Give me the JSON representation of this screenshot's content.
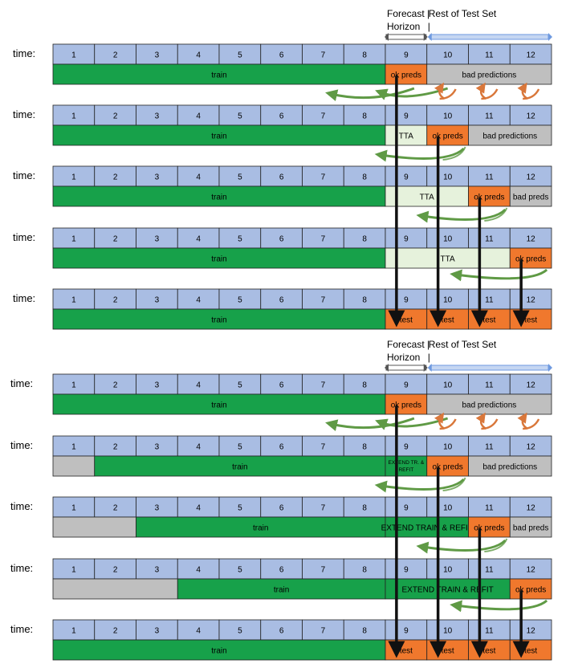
{
  "time_label": "time:",
  "step_numbers": [
    "1",
    "2",
    "3",
    "4",
    "5",
    "6",
    "7",
    "8",
    "9",
    "10",
    "11",
    "12"
  ],
  "colors": {
    "step_cell": "#a9bde3",
    "train": "#17a14a",
    "tta": "#e6f2dc",
    "ok": "#f0782d",
    "bad": "#bfbfbf",
    "forecast_arrow": "#555555",
    "test_arrow": "#6f9ae0",
    "curve_green": "#5f9a45",
    "curve_orange": "#d9773a",
    "vertical_arrow": "#111111"
  },
  "sections": [
    {
      "header": {
        "left_line1": "Forecast |",
        "left_line2": "Horizon",
        "right_line1": "Rest of Test Set",
        "right_line2": "|"
      },
      "rows": [
        {
          "segments": [
            {
              "from": 1,
              "to": 8,
              "kind": "train",
              "label": "train"
            },
            {
              "from": 9,
              "to": 9,
              "kind": "ok",
              "label": "ok preds"
            },
            {
              "from": 10,
              "to": 12,
              "kind": "bad",
              "label": "bad predictions"
            }
          ],
          "curves_after": "first"
        },
        {
          "segments": [
            {
              "from": 1,
              "to": 8,
              "kind": "train",
              "label": "train"
            },
            {
              "from": 9,
              "to": 9,
              "kind": "tta",
              "label": "TTA"
            },
            {
              "from": 10,
              "to": 10,
              "kind": "ok",
              "label": "ok preds"
            },
            {
              "from": 11,
              "to": 12,
              "kind": "bad",
              "label": "bad predictions"
            }
          ],
          "curves_after": "green"
        },
        {
          "segments": [
            {
              "from": 1,
              "to": 8,
              "kind": "train",
              "label": "train"
            },
            {
              "from": 9,
              "to": 10,
              "kind": "tta",
              "label": "TTA"
            },
            {
              "from": 11,
              "to": 11,
              "kind": "ok",
              "label": "ok preds"
            },
            {
              "from": 12,
              "to": 12,
              "kind": "bad",
              "label": "bad preds"
            }
          ],
          "curves_after": "green"
        },
        {
          "segments": [
            {
              "from": 1,
              "to": 8,
              "kind": "train",
              "label": "train"
            },
            {
              "from": 9,
              "to": 11,
              "kind": "tta",
              "label": "TTA"
            },
            {
              "from": 12,
              "to": 12,
              "kind": "ok",
              "label": "ok preds"
            }
          ],
          "curves_after": "none"
        },
        {
          "segments": [
            {
              "from": 1,
              "to": 8,
              "kind": "train",
              "label": "train"
            },
            {
              "from": 9,
              "to": 9,
              "kind": "ok",
              "label": "test"
            },
            {
              "from": 10,
              "to": 10,
              "kind": "ok",
              "label": "test"
            },
            {
              "from": 11,
              "to": 11,
              "kind": "ok",
              "label": "test"
            },
            {
              "from": 12,
              "to": 12,
              "kind": "ok",
              "label": "test"
            }
          ],
          "curves_after": "none"
        }
      ]
    },
    {
      "header": {
        "left_line1": "Forecast |",
        "left_line2": "Horizon",
        "right_line1": "Rest of Test Set",
        "right_line2": "|"
      },
      "rows": [
        {
          "segments": [
            {
              "from": 1,
              "to": 8,
              "kind": "train",
              "label": "train"
            },
            {
              "from": 9,
              "to": 9,
              "kind": "ok",
              "label": "ok preds"
            },
            {
              "from": 10,
              "to": 12,
              "kind": "bad",
              "label": "bad predictions"
            }
          ],
          "curves_after": "first"
        },
        {
          "segments": [
            {
              "from": 1,
              "to": 1,
              "kind": "bad",
              "label": ""
            },
            {
              "from": 2,
              "to": 8,
              "kind": "train",
              "label": "train"
            },
            {
              "from": 9,
              "to": 9,
              "kind": "train",
              "label": "EXTEND TR. & REFIT",
              "small": true
            },
            {
              "from": 10,
              "to": 10,
              "kind": "ok",
              "label": "ok preds"
            },
            {
              "from": 11,
              "to": 12,
              "kind": "bad",
              "label": "bad predictions"
            }
          ],
          "curves_after": "green"
        },
        {
          "segments": [
            {
              "from": 1,
              "to": 2,
              "kind": "bad",
              "label": ""
            },
            {
              "from": 3,
              "to": 8,
              "kind": "train",
              "label": "train"
            },
            {
              "from": 9,
              "to": 10,
              "kind": "train",
              "label": "EXTEND TRAIN & REFIT"
            },
            {
              "from": 11,
              "to": 11,
              "kind": "ok",
              "label": "ok preds"
            },
            {
              "from": 12,
              "to": 12,
              "kind": "bad",
              "label": "bad preds"
            }
          ],
          "curves_after": "green"
        },
        {
          "segments": [
            {
              "from": 1,
              "to": 3,
              "kind": "bad",
              "label": ""
            },
            {
              "from": 4,
              "to": 8,
              "kind": "train",
              "label": "train"
            },
            {
              "from": 9,
              "to": 11,
              "kind": "train",
              "label": "EXTEND TRAIN & REFIT"
            },
            {
              "from": 12,
              "to": 12,
              "kind": "ok",
              "label": "ok preds"
            }
          ],
          "curves_after": "none"
        },
        {
          "segments": [
            {
              "from": 1,
              "to": 8,
              "kind": "train",
              "label": "train"
            },
            {
              "from": 9,
              "to": 9,
              "kind": "ok",
              "label": "test"
            },
            {
              "from": 10,
              "to": 10,
              "kind": "ok",
              "label": "test"
            },
            {
              "from": 11,
              "to": 11,
              "kind": "ok",
              "label": "test"
            },
            {
              "from": 12,
              "to": 12,
              "kind": "ok",
              "label": "test"
            }
          ],
          "curves_after": "none"
        }
      ]
    }
  ]
}
